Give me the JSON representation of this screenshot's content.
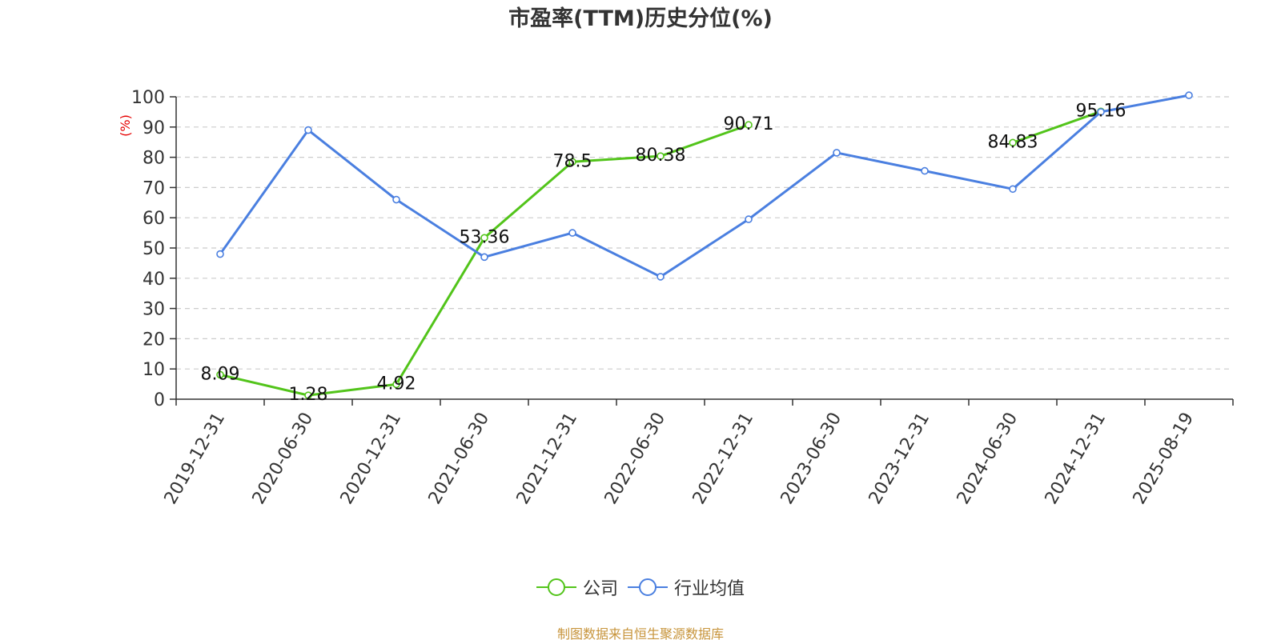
{
  "chart_data": {
    "type": "line",
    "title": "市盈率(TTM)历史分位(%)",
    "ylabel": "(%)",
    "xlabel": "",
    "ylim": [
      0,
      100
    ],
    "yticks": [
      0,
      10,
      20,
      30,
      40,
      50,
      60,
      70,
      80,
      90,
      100
    ],
    "categories": [
      "2019-12-31",
      "2020-06-30",
      "2020-12-31",
      "2021-06-30",
      "2021-12-31",
      "2022-06-30",
      "2022-12-31",
      "2023-06-30",
      "2023-12-31",
      "2024-06-30",
      "2024-12-31",
      "2025-08-19"
    ],
    "grid": true,
    "legend_position": "bottom-center",
    "series": [
      {
        "name": "公司",
        "color": "#52c41a",
        "values": [
          8.09,
          1.28,
          4.92,
          53.36,
          78.5,
          80.38,
          90.71,
          null,
          null,
          84.83,
          95.16,
          null
        ],
        "labels": [
          "8.09",
          "1.28",
          "4.92",
          "53.36",
          "78.5",
          "80.38",
          "90.71",
          "",
          "",
          "84.83",
          "95.16",
          ""
        ]
      },
      {
        "name": "行业均值",
        "color": "#4a7fe0",
        "values": [
          48,
          89,
          66,
          47,
          55,
          40.5,
          59.5,
          81.5,
          75.5,
          69.5,
          95,
          100.5
        ],
        "labels": []
      }
    ]
  },
  "source": "制图数据来自恒生聚源数据库"
}
